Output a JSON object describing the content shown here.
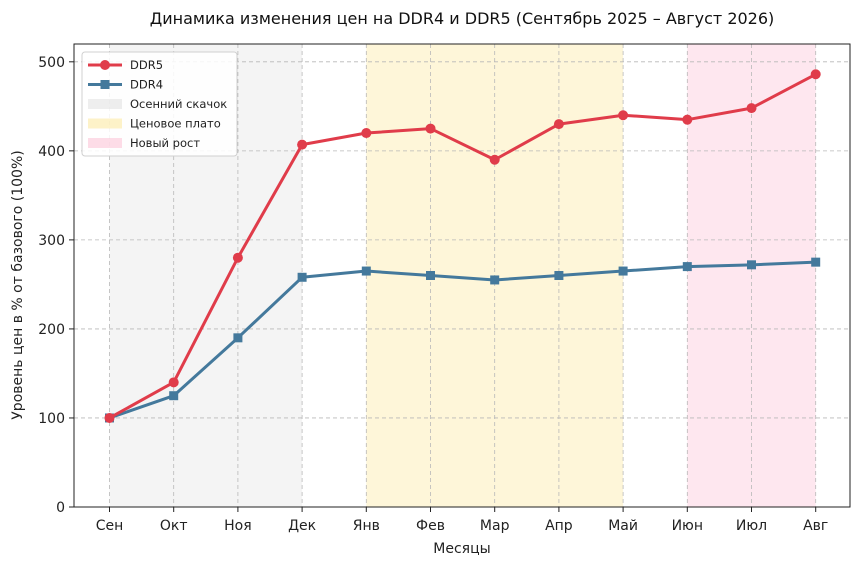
{
  "chart_data": {
    "type": "line",
    "title": "Динамика изменения цен на DDR4 и DDR5 (Сентябрь 2025 – Август 2026)",
    "xlabel": "Месяцы",
    "ylabel": "Уровень цен в % от базового (100%)",
    "categories": [
      "Сен",
      "Окт",
      "Ноя",
      "Дек",
      "Янв",
      "Фев",
      "Мар",
      "Апр",
      "Май",
      "Июн",
      "Июл",
      "Авг"
    ],
    "ylim": [
      0,
      520
    ],
    "yticks": [
      0,
      100,
      200,
      300,
      400,
      500
    ],
    "grid": true,
    "legend_position": "top-left",
    "series": [
      {
        "name": "DDR5",
        "color": "#e03c4a",
        "marker": "circle",
        "values": [
          100,
          140,
          280,
          407,
          420,
          425,
          390,
          430,
          440,
          435,
          448,
          486
        ]
      },
      {
        "name": "DDR4",
        "color": "#44799c",
        "marker": "square",
        "values": [
          100,
          125,
          190,
          258,
          265,
          260,
          255,
          260,
          265,
          270,
          272,
          275
        ]
      }
    ],
    "bands": [
      {
        "name": "Осенний скачок",
        "from": 0,
        "to": 3,
        "color": "#d9d9d9",
        "opacity": 0.3
      },
      {
        "name": "Ценовое плато",
        "from": 4,
        "to": 8,
        "color": "#fbe591",
        "opacity": 0.35
      },
      {
        "name": "Новый рост",
        "from": 9,
        "to": 11,
        "color": "#fbb9d0",
        "opacity": 0.35
      }
    ]
  }
}
